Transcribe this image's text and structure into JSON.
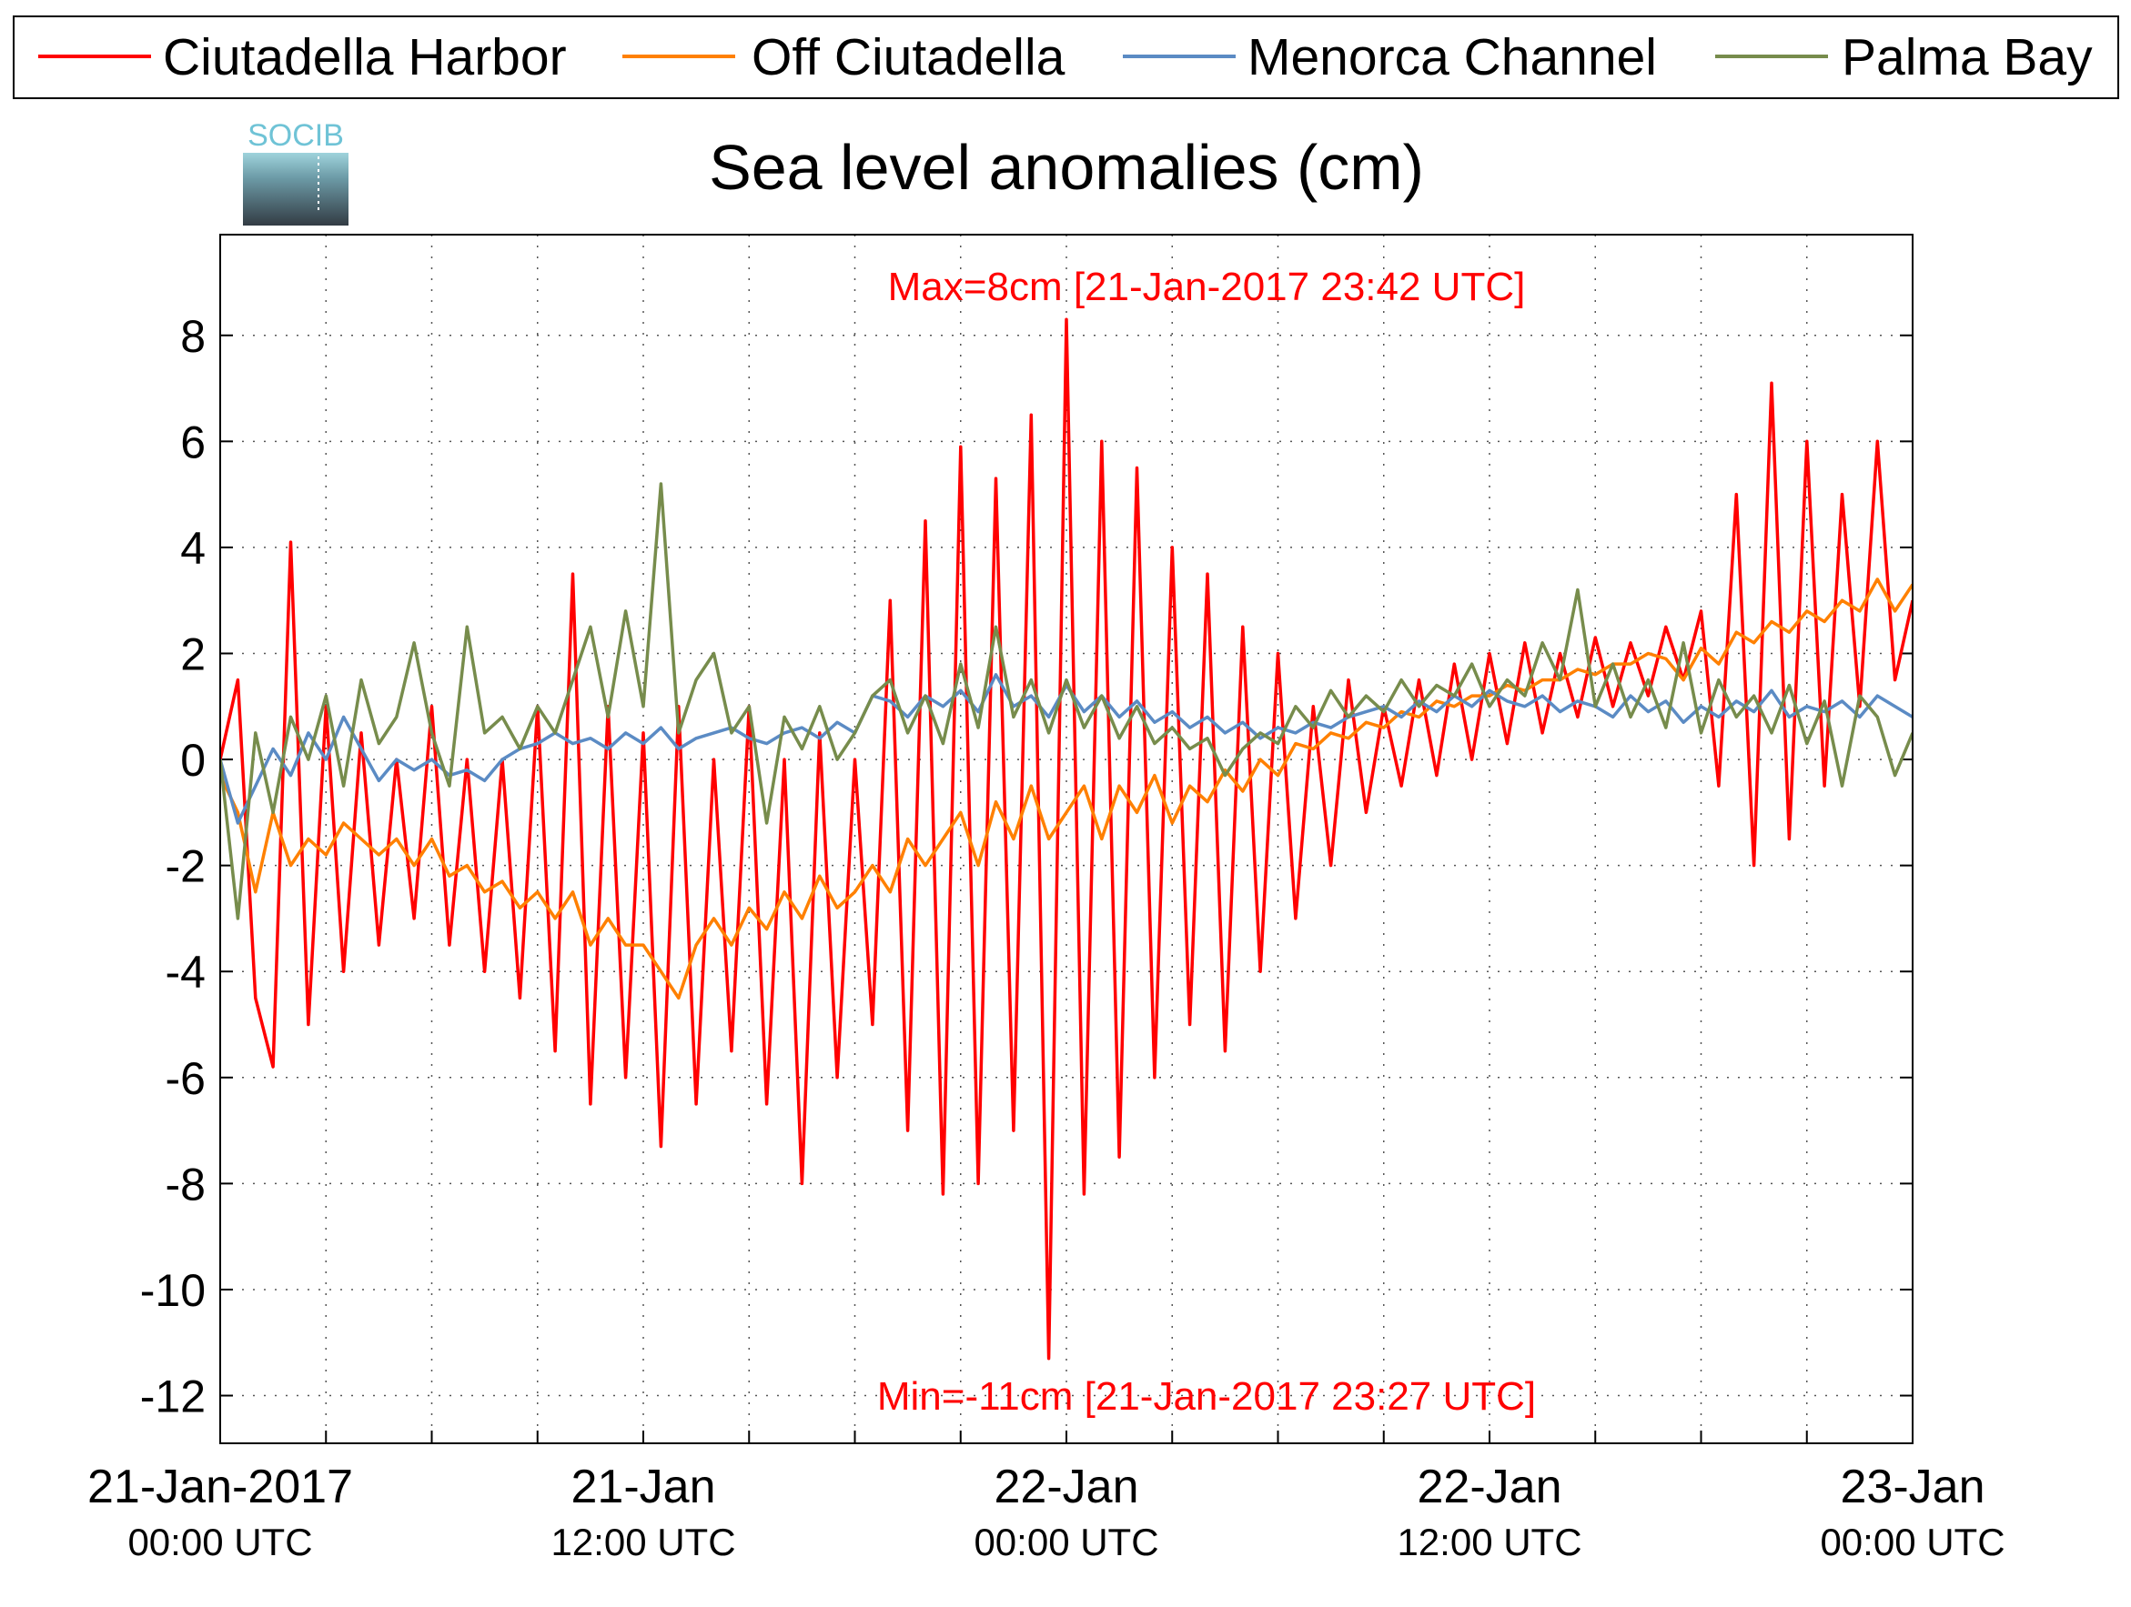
{
  "chart_data": {
    "type": "line",
    "title": "Sea level anomalies (cm)",
    "logo_text": "SOCIB",
    "legend": "top",
    "grid": true,
    "annotations": [
      {
        "text": "Max=8cm [21-Jan-2017 23:42 UTC]",
        "color": "#ff0000",
        "position": "top"
      },
      {
        "text": "Min=-11cm [21-Jan-2017 23:27 UTC]",
        "color": "#ff0000",
        "position": "bottom"
      }
    ],
    "xlim": [
      "2017-01-21T00:00",
      "2017-01-23T00:00"
    ],
    "xticks": [
      {
        "value": "2017-01-21T00:00",
        "label": [
          "21-Jan-2017",
          "00:00 UTC"
        ]
      },
      {
        "value": "2017-01-21T12:00",
        "label": [
          "21-Jan",
          "12:00 UTC"
        ]
      },
      {
        "value": "2017-01-22T00:00",
        "label": [
          "22-Jan",
          "00:00 UTC"
        ]
      },
      {
        "value": "2017-01-22T12:00",
        "label": [
          "22-Jan",
          "12:00 UTC"
        ]
      },
      {
        "value": "2017-01-23T00:00",
        "label": [
          "23-Jan",
          "00:00 UTC"
        ]
      }
    ],
    "xminorticks": [
      "2017-01-21T03:00",
      "2017-01-21T06:00",
      "2017-01-21T09:00",
      "2017-01-21T15:00",
      "2017-01-21T18:00",
      "2017-01-21T21:00",
      "2017-01-22T03:00",
      "2017-01-22T06:00",
      "2017-01-22T09:00",
      "2017-01-22T15:00",
      "2017-01-22T18:00",
      "2017-01-22T21:00"
    ],
    "ylim": [
      -12.9,
      9.9
    ],
    "yticks": [
      -12,
      -10,
      -8,
      -6,
      -4,
      -2,
      0,
      2,
      4,
      6,
      8
    ],
    "x": [
      "2017-01-21T00:00",
      "2017-01-21T00:30",
      "2017-01-21T01:00",
      "2017-01-21T01:30",
      "2017-01-21T02:00",
      "2017-01-21T02:30",
      "2017-01-21T03:00",
      "2017-01-21T03:30",
      "2017-01-21T04:00",
      "2017-01-21T04:30",
      "2017-01-21T05:00",
      "2017-01-21T05:30",
      "2017-01-21T06:00",
      "2017-01-21T06:30",
      "2017-01-21T07:00",
      "2017-01-21T07:30",
      "2017-01-21T08:00",
      "2017-01-21T08:30",
      "2017-01-21T09:00",
      "2017-01-21T09:30",
      "2017-01-21T10:00",
      "2017-01-21T10:30",
      "2017-01-21T11:00",
      "2017-01-21T11:30",
      "2017-01-21T12:00",
      "2017-01-21T12:30",
      "2017-01-21T13:00",
      "2017-01-21T13:30",
      "2017-01-21T14:00",
      "2017-01-21T14:30",
      "2017-01-21T15:00",
      "2017-01-21T15:30",
      "2017-01-21T16:00",
      "2017-01-21T16:30",
      "2017-01-21T17:00",
      "2017-01-21T17:30",
      "2017-01-21T18:00",
      "2017-01-21T18:30",
      "2017-01-21T19:00",
      "2017-01-21T19:30",
      "2017-01-21T20:00",
      "2017-01-21T20:30",
      "2017-01-21T21:00",
      "2017-01-21T21:30",
      "2017-01-21T22:00",
      "2017-01-21T22:30",
      "2017-01-21T23:00",
      "2017-01-21T23:30",
      "2017-01-22T00:00",
      "2017-01-22T00:30",
      "2017-01-22T01:00",
      "2017-01-22T01:30",
      "2017-01-22T02:00",
      "2017-01-22T02:30",
      "2017-01-22T03:00",
      "2017-01-22T03:30",
      "2017-01-22T04:00",
      "2017-01-22T04:30",
      "2017-01-22T05:00",
      "2017-01-22T05:30",
      "2017-01-22T06:00",
      "2017-01-22T06:30",
      "2017-01-22T07:00",
      "2017-01-22T07:30",
      "2017-01-22T08:00",
      "2017-01-22T08:30",
      "2017-01-22T09:00",
      "2017-01-22T09:30",
      "2017-01-22T10:00",
      "2017-01-22T10:30",
      "2017-01-22T11:00",
      "2017-01-22T11:30",
      "2017-01-22T12:00",
      "2017-01-22T12:30",
      "2017-01-22T13:00",
      "2017-01-22T13:30",
      "2017-01-22T14:00",
      "2017-01-22T14:30",
      "2017-01-22T15:00",
      "2017-01-22T15:30",
      "2017-01-22T16:00",
      "2017-01-22T16:30",
      "2017-01-22T17:00",
      "2017-01-22T17:30",
      "2017-01-22T18:00",
      "2017-01-22T18:30",
      "2017-01-22T19:00",
      "2017-01-22T19:30",
      "2017-01-22T20:00",
      "2017-01-22T20:30",
      "2017-01-22T21:00",
      "2017-01-22T21:30",
      "2017-01-22T22:00",
      "2017-01-22T22:30",
      "2017-01-22T23:00",
      "2017-01-22T23:30",
      "2017-01-23T00:00"
    ],
    "series": [
      {
        "name": "Ciutadella Harbor",
        "color": "#ff0000",
        "values": [
          0,
          1.5,
          -4.5,
          -5.8,
          4.1,
          -5,
          1,
          -4,
          0.5,
          -3.5,
          0,
          -3,
          1,
          -3.5,
          0,
          -4,
          0,
          -4.5,
          1,
          -5.5,
          3.5,
          -6.5,
          1,
          -6,
          0.5,
          -7.3,
          1,
          -6.5,
          0,
          -5.5,
          1,
          -6.5,
          0,
          -8,
          0.5,
          -6,
          0,
          -5,
          3,
          -7,
          4.5,
          -8.2,
          5.9,
          -8,
          5.3,
          -7,
          6.5,
          -11.3,
          8.3,
          -8.2,
          6,
          -7.5,
          5.5,
          -6,
          4,
          -5,
          3.5,
          -5.5,
          2.5,
          -4,
          2,
          -3,
          1,
          -2,
          1.5,
          -1,
          1,
          -0.5,
          1.5,
          -0.3,
          1.8,
          0,
          2,
          0.3,
          2.2,
          0.5,
          2,
          0.8,
          2.3,
          1,
          2.2,
          1.2,
          2.5,
          1.5,
          2.8,
          -0.5,
          5,
          -2,
          7.1,
          -1.5,
          6,
          -0.5,
          5,
          1,
          6,
          1.5,
          3
        ]
      },
      {
        "name": "Off Ciutadella",
        "color": "#ff8000",
        "values": [
          -0.3,
          -1,
          -2.5,
          -1,
          -2,
          -1.5,
          -1.8,
          -1.2,
          -1.5,
          -1.8,
          -1.5,
          -2,
          -1.5,
          -2.2,
          -2,
          -2.5,
          -2.3,
          -2.8,
          -2.5,
          -3,
          -2.5,
          -3.5,
          -3,
          -3.5,
          -3.5,
          -4,
          -4.5,
          -3.5,
          -3,
          -3.5,
          -2.8,
          -3.2,
          -2.5,
          -3,
          -2.2,
          -2.8,
          -2.5,
          -2,
          -2.5,
          -1.5,
          -2,
          -1.5,
          -1,
          -2,
          -0.8,
          -1.5,
          -0.5,
          -1.5,
          -1,
          -0.5,
          -1.5,
          -0.5,
          -1,
          -0.3,
          -1.2,
          -0.5,
          -0.8,
          -0.2,
          -0.6,
          0,
          -0.3,
          0.3,
          0.2,
          0.5,
          0.4,
          0.7,
          0.6,
          0.9,
          0.8,
          1.1,
          1,
          1.2,
          1.2,
          1.4,
          1.3,
          1.5,
          1.5,
          1.7,
          1.6,
          1.8,
          1.8,
          2,
          1.9,
          1.5,
          2.1,
          1.8,
          2.4,
          2.2,
          2.6,
          2.4,
          2.8,
          2.6,
          3,
          2.8,
          3.4,
          2.8,
          3.3
        ]
      },
      {
        "name": "Menorca Channel",
        "color": "#5b8bc4",
        "values": [
          0,
          -1.2,
          -0.5,
          0.2,
          -0.3,
          0.5,
          0,
          0.8,
          0.2,
          -0.4,
          0,
          -0.2,
          0,
          -0.3,
          -0.2,
          -0.4,
          0,
          0.2,
          0.3,
          0.5,
          0.3,
          0.4,
          0.2,
          0.5,
          0.3,
          0.6,
          0.2,
          0.4,
          0.5,
          0.6,
          0.4,
          0.3,
          0.5,
          0.6,
          0.4,
          0.7,
          0.5,
          1.2,
          1.1,
          0.8,
          1.2,
          1,
          1.3,
          0.9,
          1.6,
          1,
          1.2,
          0.8,
          1.4,
          0.9,
          1.2,
          0.8,
          1.1,
          0.7,
          0.9,
          0.6,
          0.8,
          0.5,
          0.7,
          0.4,
          0.6,
          0.5,
          0.7,
          0.6,
          0.8,
          0.9,
          1,
          0.8,
          1.1,
          0.9,
          1.2,
          1,
          1.3,
          1.1,
          1,
          1.2,
          0.9,
          1.1,
          1,
          0.8,
          1.2,
          0.9,
          1.1,
          0.7,
          1,
          0.8,
          1.1,
          0.9,
          1.3,
          0.8,
          1,
          0.9,
          1.1,
          0.8,
          1.2,
          1,
          0.8
        ]
      },
      {
        "name": "Palma Bay",
        "color": "#778c4c",
        "values": [
          0,
          -3,
          0.5,
          -1,
          0.8,
          0,
          1.2,
          -0.5,
          1.5,
          0.3,
          0.8,
          2.2,
          0.5,
          -0.5,
          2.5,
          0.5,
          0.8,
          0.2,
          1,
          0.5,
          1.5,
          2.5,
          0.8,
          2.8,
          1,
          5.2,
          0.5,
          1.5,
          2,
          0.5,
          1,
          -1.2,
          0.8,
          0.2,
          1,
          0,
          0.5,
          1.2,
          1.5,
          0.5,
          1.2,
          0.3,
          1.8,
          0.6,
          2.5,
          0.8,
          1.5,
          0.5,
          1.5,
          0.6,
          1.2,
          0.4,
          1,
          0.3,
          0.6,
          0.2,
          0.4,
          -0.3,
          0.2,
          0.5,
          0.3,
          1,
          0.6,
          1.3,
          0.8,
          1.2,
          0.9,
          1.5,
          1,
          1.4,
          1.2,
          1.8,
          1,
          1.5,
          1.2,
          2.2,
          1.5,
          3.2,
          1,
          1.8,
          0.8,
          1.5,
          0.6,
          2.2,
          0.5,
          1.5,
          0.8,
          1.2,
          0.5,
          1.4,
          0.3,
          1.1,
          -0.5,
          1.2,
          0.8,
          -0.3,
          0.5
        ]
      }
    ]
  }
}
